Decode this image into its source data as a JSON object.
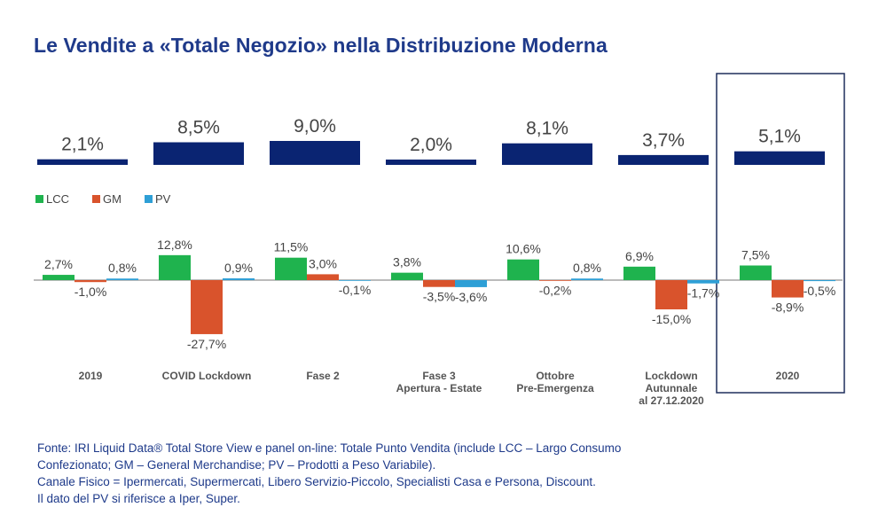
{
  "title": "Le Vendite a «Totale Negozio» nella Distribuzione Moderna",
  "footnotes": [
    "Fonte: IRI Liquid Data® Total Store View e panel on-line: Totale Punto Vendita (include LCC – Largo Consumo",
    "Confezionato; GM – General Merchandise; PV – Prodotti a Peso Variabile).",
    "Canale Fisico =  Ipermercati, Supermercati, Libero Servizio-Piccolo, Specialisti Casa e Persona, Discount.",
    "Il dato del PV si riferisce a Iper, Super."
  ],
  "colors": {
    "title": "#1f3a8a",
    "total_bar": "#0a2472",
    "LCC": "#1fb34e",
    "GM": "#d9532c",
    "PV": "#2e9fd6",
    "highlight_box": "#1f2f5c"
  },
  "chart_data": [
    {
      "type": "bar",
      "categories": [
        "2019",
        "COVID Lockdown",
        "Fase 2",
        "Fase 3 Apertura - Estate",
        "Ottobre Pre-Emergenza",
        "Lockdown Autunnale al 27.12.2020",
        "2020"
      ],
      "values": [
        2.1,
        8.5,
        9.0,
        2.0,
        8.1,
        3.7,
        5.1
      ],
      "value_labels": [
        "2,1%",
        "8,5%",
        "9,0%",
        "2,0%",
        "8,1%",
        "3,7%",
        "5,1%"
      ],
      "ylim": [
        0,
        10
      ]
    },
    {
      "type": "bar",
      "categories": [
        "2019",
        "COVID Lockdown",
        "Fase 2",
        "Fase 3 Apertura - Estate",
        "Ottobre Pre-Emergenza",
        "Lockdown Autunnale al 27.12.2020",
        "2020"
      ],
      "category_lines": [
        [
          "2019"
        ],
        [
          "COVID Lockdown"
        ],
        [
          "Fase 2"
        ],
        [
          "Fase 3",
          "Apertura - Estate"
        ],
        [
          "Ottobre",
          "Pre-Emergenza"
        ],
        [
          "Lockdown",
          "Autunnale",
          "al 27.12.2020"
        ],
        [
          "2020"
        ]
      ],
      "legend": "top-left",
      "ylim": [
        -30,
        15
      ],
      "highlight_category": "2020",
      "series": [
        {
          "name": "LCC",
          "values": [
            2.7,
            12.8,
            11.5,
            3.8,
            10.6,
            6.9,
            7.5
          ],
          "labels": [
            "2,7%",
            "12,8%",
            "11,5%",
            "3,8%",
            "10,6%",
            "6,9%",
            "7,5%"
          ]
        },
        {
          "name": "GM",
          "values": [
            -1.0,
            -27.7,
            3.0,
            -3.5,
            -0.2,
            -15.0,
            -8.9
          ],
          "labels": [
            "-1,0%",
            "-27,7%",
            "3,0%",
            "-3,5%",
            "-0,2%",
            "-15,0%",
            "-8,9%"
          ]
        },
        {
          "name": "PV",
          "values": [
            0.8,
            0.9,
            -0.1,
            -3.6,
            0.8,
            -1.7,
            -0.5
          ],
          "labels": [
            "0,8%",
            "0,9%",
            "-0,1%",
            "-3,6%",
            "0,8%",
            "-1,7%",
            "-0,5%"
          ]
        }
      ]
    }
  ]
}
